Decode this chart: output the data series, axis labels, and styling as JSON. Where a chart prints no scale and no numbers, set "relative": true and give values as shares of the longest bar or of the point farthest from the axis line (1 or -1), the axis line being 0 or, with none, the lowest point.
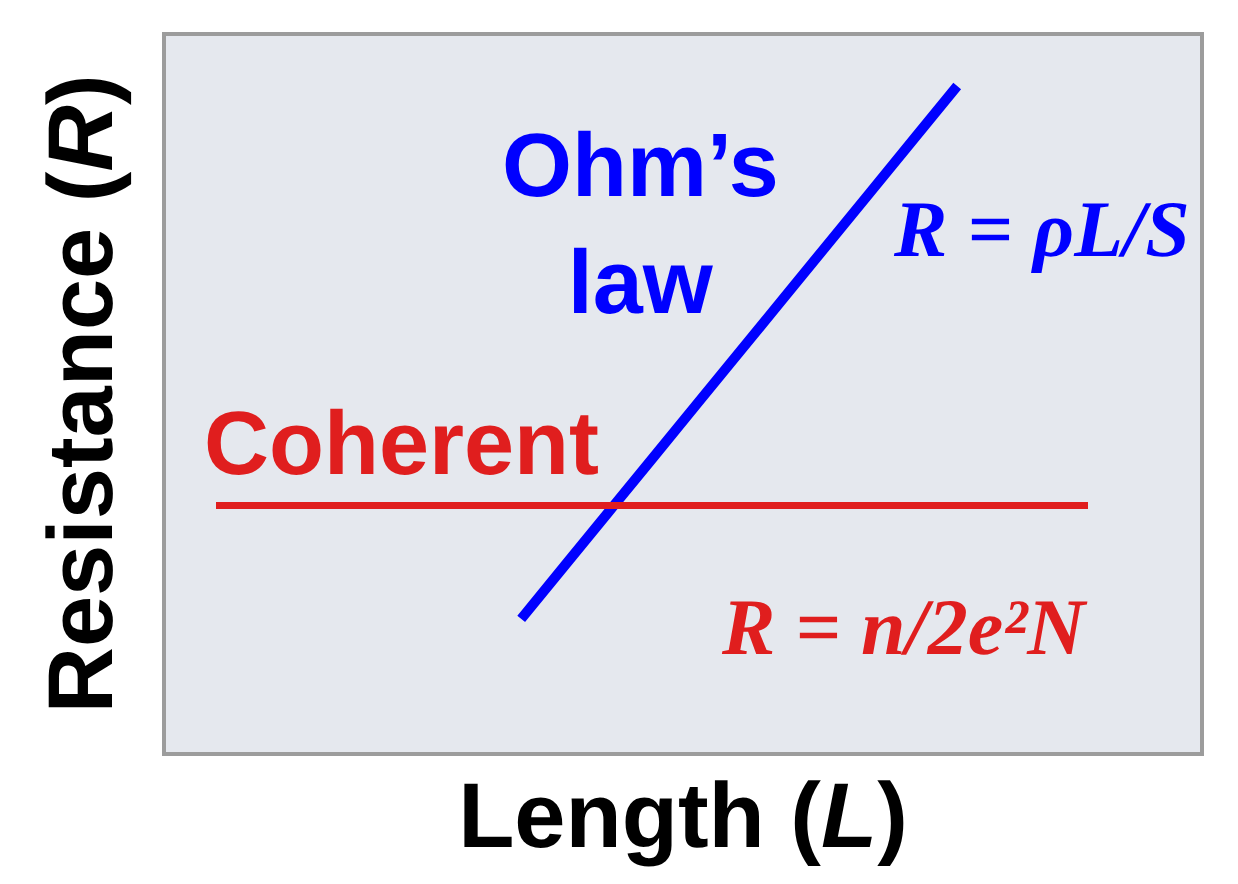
{
  "chart_data": {
    "type": "line",
    "relative": true,
    "xlabel": "Length (L)",
    "ylabel": "Resistance (R)",
    "categories": [
      null,
      null,
      null,
      null,
      null,
      null,
      null,
      null,
      null,
      null,
      null,
      null,
      null,
      null,
      null,
      null,
      null,
      null,
      null,
      null,
      null
    ],
    "legend": false,
    "marker": "none",
    "line_style": "solid",
    "series": [
      {
        "name": "Ohm’s law",
        "color": "#0000ff",
        "values": [
          null,
          null,
          null,
          null,
          null,
          null,
          null,
          0.2,
          0.28,
          0.36,
          0.44,
          0.52,
          0.6,
          0.68,
          0.76,
          0.84,
          0.92,
          1,
          null,
          null,
          null
        ]
      },
      {
        "name": "Coherent",
        "color": "#e01e1e",
        "values": [
          0.37,
          0.37,
          0.37,
          0.37,
          0.37,
          0.37,
          0.37,
          0.37,
          0.37,
          0.37,
          0.37,
          0.37,
          0.37,
          0.37,
          0.37,
          0.37,
          0.37,
          0.37,
          0.37,
          0.37,
          0.37
        ]
      }
    ],
    "annotations": [
      "R = ρL/S",
      "R = n/2e²N"
    ]
  }
}
